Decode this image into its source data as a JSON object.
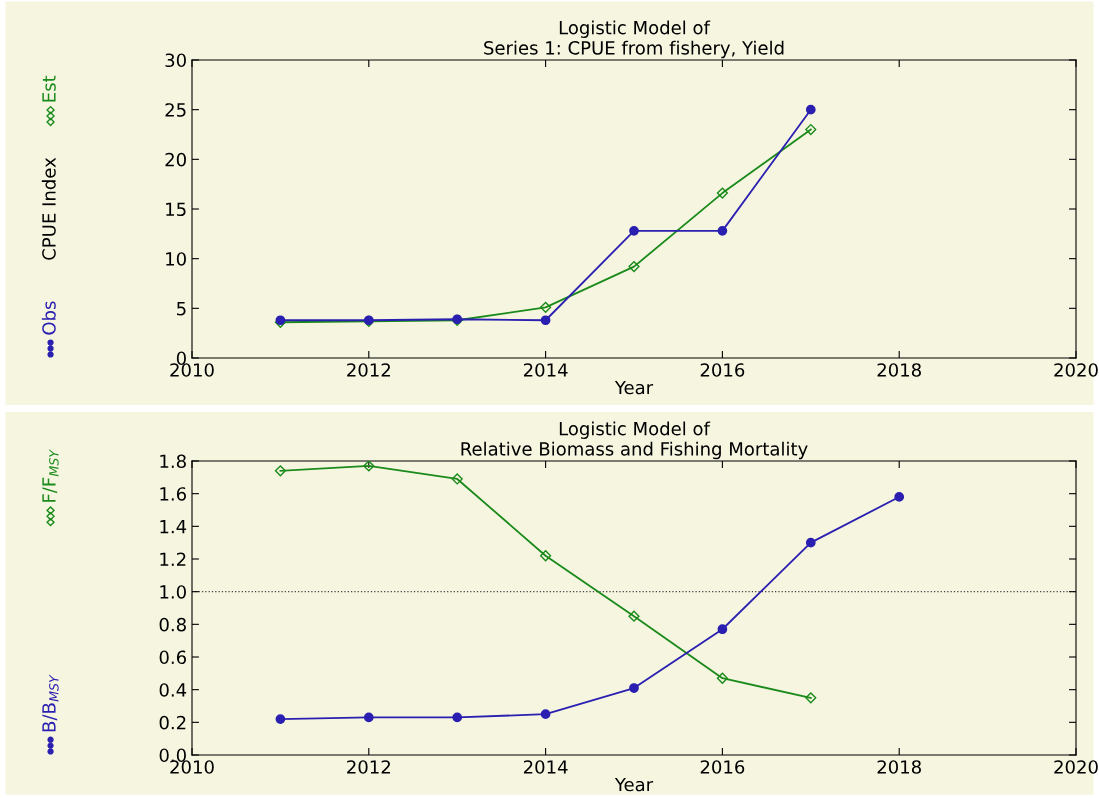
{
  "chart_data": [
    {
      "type": "line",
      "title": "Logistic Model of\nSeries 1: CPUE from fishery, Yield",
      "xlabel": "Year",
      "ylabel": "CPUE Index",
      "x": [
        2011,
        2012,
        2013,
        2014,
        2015,
        2016,
        2017
      ],
      "series": [
        {
          "name": "Obs",
          "color": "#2a1fb0",
          "marker": "circle",
          "values": [
            3.8,
            3.8,
            3.9,
            3.8,
            12.8,
            12.8,
            25.0
          ]
        },
        {
          "name": "Est",
          "color": "#1a8a1a",
          "marker": "diamond",
          "values": [
            3.6,
            3.7,
            3.8,
            5.1,
            9.2,
            16.6,
            23.0
          ]
        }
      ],
      "xlim": [
        2010,
        2020
      ],
      "xticks": [
        2010,
        2012,
        2014,
        2016,
        2018,
        2020
      ],
      "ylim": [
        0,
        30
      ],
      "yticks": [
        0,
        5,
        10,
        15,
        20,
        25,
        30
      ],
      "grid": false,
      "legend": "left"
    },
    {
      "type": "line",
      "title": "Logistic Model of\nRelative Biomass and Fishing Mortality",
      "xlabel": "Year",
      "series": [
        {
          "name": "B/B$_{MSY}$",
          "color": "#2a1fb0",
          "marker": "circle",
          "x": [
            2011,
            2012,
            2013,
            2014,
            2015,
            2016,
            2017,
            2018
          ],
          "values": [
            0.22,
            0.23,
            0.23,
            0.25,
            0.41,
            0.77,
            1.3,
            1.58
          ]
        },
        {
          "name": "F/F$_{MSY}$",
          "color": "#1a8a1a",
          "marker": "diamond",
          "x": [
            2011,
            2012,
            2013,
            2014,
            2015,
            2016,
            2017
          ],
          "values": [
            1.74,
            1.77,
            1.69,
            1.22,
            0.85,
            0.47,
            0.35
          ]
        }
      ],
      "ref_lines": [
        {
          "axis": "y",
          "value": 1.0,
          "line_style": "dotted",
          "color": "#444444"
        }
      ],
      "xlim": [
        2010,
        2020
      ],
      "xticks": [
        2010,
        2012,
        2014,
        2016,
        2018,
        2020
      ],
      "ylim": [
        0,
        1.8
      ],
      "yticks": [
        {
          "value": 0,
          "label": "0.0"
        },
        0.2,
        0.4,
        0.6,
        0.8,
        {
          "value": 1.0,
          "label": "1.0"
        },
        1.2,
        1.4,
        1.6,
        1.8
      ],
      "grid": false,
      "legend": "left"
    }
  ]
}
